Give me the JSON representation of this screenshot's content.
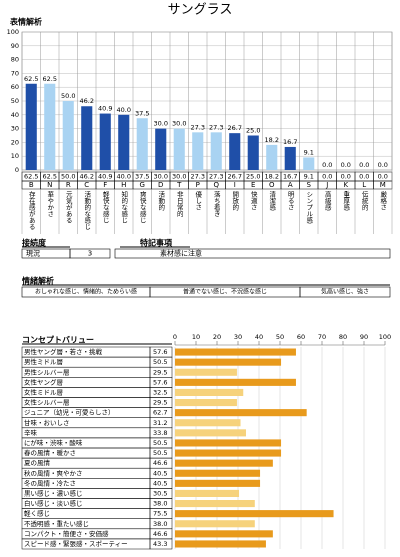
{
  "title": "サングラス",
  "chart_data": [
    {
      "type": "bar",
      "title": "表情解析",
      "categories": [
        "B",
        "N",
        "R",
        "C",
        "F",
        "H",
        "G",
        "D",
        "T",
        "P",
        "Q",
        "I",
        "E",
        "O",
        "A",
        "S",
        "J",
        "K",
        "L",
        "M"
      ],
      "category_labels": [
        "存在感がある",
        "華やかさ",
        "元気がある",
        "活動的な感じ",
        "軽快な感じ",
        "知的な感じ",
        "爽快な感じ",
        "活動的",
        "非日常的",
        "優しさ",
        "落ち着き",
        "開放的",
        "快適さ",
        "清潔感",
        "明るさ",
        "シンプル感",
        "高級感",
        "重厚感",
        "伝統的",
        "厳格さ"
      ],
      "values": [
        62.5,
        62.5,
        50,
        46.2,
        40.9,
        40,
        37.5,
        30,
        30,
        27.3,
        27.3,
        26.7,
        25,
        18.2,
        16.7,
        9.1,
        0,
        0,
        0,
        0
      ],
      "value_labels": [
        "62.5",
        "62.5",
        "50.0",
        "46.2",
        "40.9",
        "40.0",
        "37.5",
        "30.0",
        "30.0",
        "27.3",
        "27.3",
        "26.7",
        "25.0",
        "18.2",
        "16.7",
        "9.1",
        "0.0",
        "0.0",
        "0.0",
        "0.0"
      ],
      "colors": [
        "#1f4fa8",
        "#a9d3f2",
        "#a9d3f2",
        "#1f4fa8",
        "#1f4fa8",
        "#1f4fa8",
        "#a9d3f2",
        "#1f4fa8",
        "#a9d3f2",
        "#a9d3f2",
        "#a9d3f2",
        "#1f4fa8",
        "#1f4fa8",
        "#a9d3f2",
        "#1f4fa8",
        "#a9d3f2",
        "#a9d3f2",
        "#a9d3f2",
        "#a9d3f2",
        "#a9d3f2"
      ],
      "ylim": [
        0,
        100
      ],
      "yticks": [
        0,
        10,
        20,
        30,
        40,
        50,
        60,
        70,
        80,
        90,
        100
      ],
      "grid": true
    },
    {
      "type": "hbar",
      "title": "コンセプトバリュー",
      "categories": [
        "男性ヤング層・若さ・挑戦",
        "男性ミドル層",
        "男性シルバー層",
        "女性ヤング層",
        "女性ミドル層",
        "女性シルバー層",
        "ジュニア（幼児・可愛らしさ）",
        "甘味・おいしさ",
        "辛味",
        "にが味・渋味・酸味",
        "春の風情・暖かさ",
        "夏の風情",
        "秋の風情・爽やかさ",
        "冬の風情・冷たさ",
        "黒い感じ・濃い感じ",
        "白い感じ・淡い感じ",
        "軽く感じ",
        "不透明感・重たい感じ",
        "コンパクト・簡便さ・安価感",
        "スピード感・緊張感・スポーティー"
      ],
      "values": [
        57.6,
        50.5,
        29.5,
        57.6,
        32.5,
        29.5,
        62.7,
        31.2,
        33.8,
        50.5,
        50.5,
        46.6,
        40.5,
        40.5,
        30.5,
        38,
        75.5,
        38,
        46.6,
        43.3
      ],
      "value_labels": [
        "57.6",
        "50.5",
        "29.5",
        "57.6",
        "32.5",
        "29.5",
        "62.7",
        "31.2",
        "33.8",
        "50.5",
        "50.5",
        "46.6",
        "40.5",
        "40.5",
        "30.5",
        "38.0",
        "75.5",
        "38.0",
        "46.6",
        "43.3"
      ],
      "colors": [
        "#e89a1c",
        "#e89a1c",
        "#f6d27c",
        "#e89a1c",
        "#f6d27c",
        "#f6d27c",
        "#e89a1c",
        "#f6d27c",
        "#f6d27c",
        "#e89a1c",
        "#e89a1c",
        "#e89a1c",
        "#e89a1c",
        "#e89a1c",
        "#f6d27c",
        "#f6d27c",
        "#e89a1c",
        "#f6d27c",
        "#e89a1c",
        "#e89a1c"
      ],
      "xlim": [
        0,
        100
      ],
      "xticks": [
        0,
        10,
        20,
        30,
        40,
        50,
        60,
        70,
        80,
        90,
        100
      ],
      "grid": true
    }
  ],
  "rating": {
    "title": "接続度",
    "label": "現況",
    "value": "3"
  },
  "notes": {
    "title": "特記事項",
    "text": "素材感に注意"
  },
  "emotion": {
    "title": "情緒解析",
    "items": [
      "おしゃれな感じ、情緒的、ためらい感",
      "普通でない感じ、不況感な感じ",
      "気高い感じ、強さ"
    ]
  }
}
